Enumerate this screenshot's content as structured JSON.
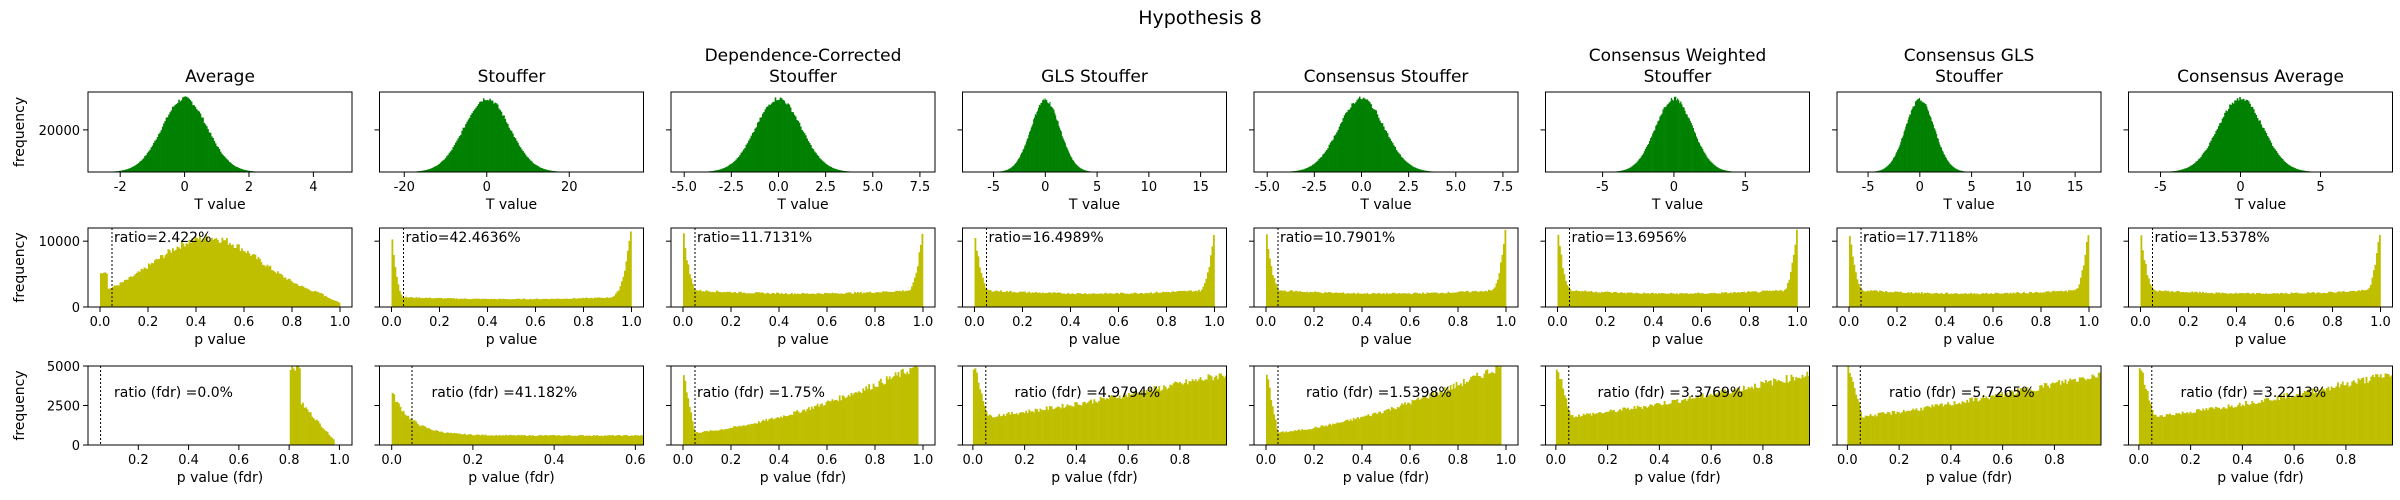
{
  "figure": {
    "suptitle": "Hypothesis 8"
  },
  "colors": {
    "t_hist": "#008000",
    "p_hist": "#bfbf00",
    "axis": "#000000",
    "ratio_line": "#000000"
  },
  "row_labels": {
    "ylabel": "frequency",
    "xlabel_t": "T value",
    "xlabel_p": "p value",
    "xlabel_fdr": "p value (fdr)"
  },
  "chart_data": [
    {
      "type": "bar",
      "title": "Average",
      "t": {
        "xticks": [
          -2,
          0,
          2,
          4
        ],
        "xlim": [
          -3.0,
          5.2
        ],
        "peak": 0,
        "sigma": 0.7,
        "yticks": [
          20000
        ],
        "ylim": [
          0,
          38000
        ],
        "peak_frac": 0.92
      },
      "p": {
        "xticks": [
          0.0,
          0.2,
          0.4,
          0.6,
          0.8,
          1.0
        ],
        "xlim": [
          -0.05,
          1.05
        ],
        "yticks": [
          0,
          10000
        ],
        "ylim": [
          0,
          12000
        ],
        "ratio": "ratio=2.422%",
        "shape": "hump"
      },
      "fdr": {
        "xticks": [
          0.2,
          0.4,
          0.6,
          0.8,
          1.0
        ],
        "xlim": [
          0.0,
          1.05
        ],
        "yticks": [
          0,
          2500,
          5000
        ],
        "ylim": [
          0,
          5000
        ],
        "ratio": "ratio (fdr) =0.0%",
        "shape": "late",
        "line_x": 0.05
      }
    },
    {
      "type": "bar",
      "title": "Stouffer",
      "t": {
        "xticks": [
          -20,
          0,
          20
        ],
        "xlim": [
          -26,
          38
        ],
        "peak": 0,
        "sigma": 5.5,
        "yticks": [],
        "ylim": [
          0,
          38000
        ],
        "peak_frac": 0.92
      },
      "p": {
        "xticks": [
          0.0,
          0.2,
          0.4,
          0.6,
          0.8,
          1.0
        ],
        "xlim": [
          -0.05,
          1.05
        ],
        "yticks": [],
        "ylim": [
          0,
          12000
        ],
        "ratio": "ratio=42.4636%",
        "shape": "uhigh"
      },
      "fdr": {
        "xticks": [
          0.0,
          0.2,
          0.4,
          0.6
        ],
        "xlim": [
          -0.03,
          0.62
        ],
        "yticks": [],
        "ylim": [
          0,
          5000
        ],
        "ratio": "ratio (fdr) =41.182%",
        "shape": "decay",
        "line_x": 0.05
      }
    },
    {
      "type": "bar",
      "title": "Dependence-Corrected\nStouffer",
      "t": {
        "xticks": [
          -5.0,
          -2.5,
          0.0,
          2.5,
          5.0,
          7.5
        ],
        "xlim": [
          -5.7,
          8.3
        ],
        "peak": 0,
        "sigma": 1.2,
        "yticks": [],
        "ylim": [
          0,
          38000
        ],
        "peak_frac": 0.92
      },
      "p": {
        "xticks": [
          0.0,
          0.2,
          0.4,
          0.6,
          0.8,
          1.0
        ],
        "xlim": [
          -0.05,
          1.05
        ],
        "yticks": [],
        "ylim": [
          0,
          12000
        ],
        "ratio": "ratio=11.7131%",
        "shape": "u"
      },
      "fdr": {
        "xticks": [
          0.0,
          0.2,
          0.4,
          0.6,
          0.8,
          1.0
        ],
        "xlim": [
          -0.05,
          1.05
        ],
        "yticks": [],
        "ylim": [
          0,
          5000
        ],
        "ratio": "ratio (fdr) =1.75%",
        "shape": "rise",
        "line_x": 0.05
      }
    },
    {
      "type": "bar",
      "title": "GLS Stouffer",
      "t": {
        "xticks": [
          -5,
          0,
          5,
          10,
          15
        ],
        "xlim": [
          -8,
          17.5
        ],
        "peak": 0,
        "sigma": 1.4,
        "yticks": [],
        "ylim": [
          0,
          38000
        ],
        "peak_frac": 0.9
      },
      "p": {
        "xticks": [
          0.0,
          0.2,
          0.4,
          0.6,
          0.8,
          1.0
        ],
        "xlim": [
          -0.05,
          1.05
        ],
        "yticks": [],
        "ylim": [
          0,
          12000
        ],
        "ratio": "ratio=16.4989%",
        "shape": "u"
      },
      "fdr": {
        "xticks": [
          0.0,
          0.2,
          0.4,
          0.6,
          0.8
        ],
        "xlim": [
          -0.04,
          0.98
        ],
        "yticks": [],
        "ylim": [
          0,
          5000
        ],
        "ratio": "ratio (fdr) =4.9794%",
        "shape": "rise2",
        "line_x": 0.05
      }
    },
    {
      "type": "bar",
      "title": "Consensus Stouffer",
      "t": {
        "xticks": [
          -5.0,
          -2.5,
          0.0,
          2.5,
          5.0,
          7.5
        ],
        "xlim": [
          -5.7,
          8.3
        ],
        "peak": 0,
        "sigma": 1.2,
        "yticks": [],
        "ylim": [
          0,
          38000
        ],
        "peak_frac": 0.92
      },
      "p": {
        "xticks": [
          0.0,
          0.2,
          0.4,
          0.6,
          0.8,
          1.0
        ],
        "xlim": [
          -0.05,
          1.05
        ],
        "yticks": [],
        "ylim": [
          0,
          12000
        ],
        "ratio": "ratio=10.7901%",
        "shape": "u"
      },
      "fdr": {
        "xticks": [
          0.0,
          0.2,
          0.4,
          0.6,
          0.8,
          1.0
        ],
        "xlim": [
          -0.05,
          1.05
        ],
        "yticks": [],
        "ylim": [
          0,
          5000
        ],
        "ratio": "ratio (fdr) =1.5398%",
        "shape": "rise",
        "line_x": 0.05
      }
    },
    {
      "type": "bar",
      "title": "Consensus Weighted\nStouffer",
      "t": {
        "xticks": [
          -5,
          0,
          5
        ],
        "xlim": [
          -9,
          9.5
        ],
        "peak": 0,
        "sigma": 1.3,
        "yticks": [],
        "ylim": [
          0,
          38000
        ],
        "peak_frac": 0.92
      },
      "p": {
        "xticks": [
          0.0,
          0.2,
          0.4,
          0.6,
          0.8,
          1.0
        ],
        "xlim": [
          -0.05,
          1.05
        ],
        "yticks": [],
        "ylim": [
          0,
          12000
        ],
        "ratio": "ratio=13.6956%",
        "shape": "u"
      },
      "fdr": {
        "xticks": [
          0.0,
          0.2,
          0.4,
          0.6,
          0.8
        ],
        "xlim": [
          -0.04,
          0.98
        ],
        "yticks": [],
        "ylim": [
          0,
          5000
        ],
        "ratio": "ratio (fdr) =3.3769%",
        "shape": "rise2",
        "line_x": 0.05
      }
    },
    {
      "type": "bar",
      "title": "Consensus GLS\nStouffer",
      "t": {
        "xticks": [
          -5,
          0,
          5,
          10,
          15
        ],
        "xlim": [
          -8,
          17.5
        ],
        "peak": 0,
        "sigma": 1.4,
        "yticks": [],
        "ylim": [
          0,
          38000
        ],
        "peak_frac": 0.9
      },
      "p": {
        "xticks": [
          0.0,
          0.2,
          0.4,
          0.6,
          0.8,
          1.0
        ],
        "xlim": [
          -0.05,
          1.05
        ],
        "yticks": [],
        "ylim": [
          0,
          12000
        ],
        "ratio": "ratio=17.7118%",
        "shape": "u"
      },
      "fdr": {
        "xticks": [
          0.0,
          0.2,
          0.4,
          0.6,
          0.8
        ],
        "xlim": [
          -0.04,
          0.98
        ],
        "yticks": [],
        "ylim": [
          0,
          5000
        ],
        "ratio": "ratio (fdr) =5.7265%",
        "shape": "rise2",
        "line_x": 0.05
      }
    },
    {
      "type": "bar",
      "title": "Consensus Average",
      "t": {
        "xticks": [
          -5,
          0,
          5
        ],
        "xlim": [
          -7,
          9.5
        ],
        "peak": 0,
        "sigma": 1.4,
        "yticks": [],
        "ylim": [
          0,
          38000
        ],
        "peak_frac": 0.92
      },
      "p": {
        "xticks": [
          0.0,
          0.2,
          0.4,
          0.6,
          0.8,
          1.0
        ],
        "xlim": [
          -0.05,
          1.05
        ],
        "yticks": [],
        "ylim": [
          0,
          12000
        ],
        "ratio": "ratio=13.5378%",
        "shape": "u"
      },
      "fdr": {
        "xticks": [
          0.0,
          0.2,
          0.4,
          0.6,
          0.8
        ],
        "xlim": [
          -0.04,
          0.98
        ],
        "yticks": [],
        "ylim": [
          0,
          5000
        ],
        "ratio": "ratio (fdr) =3.2213%",
        "shape": "rise2",
        "line_x": 0.05
      }
    }
  ]
}
